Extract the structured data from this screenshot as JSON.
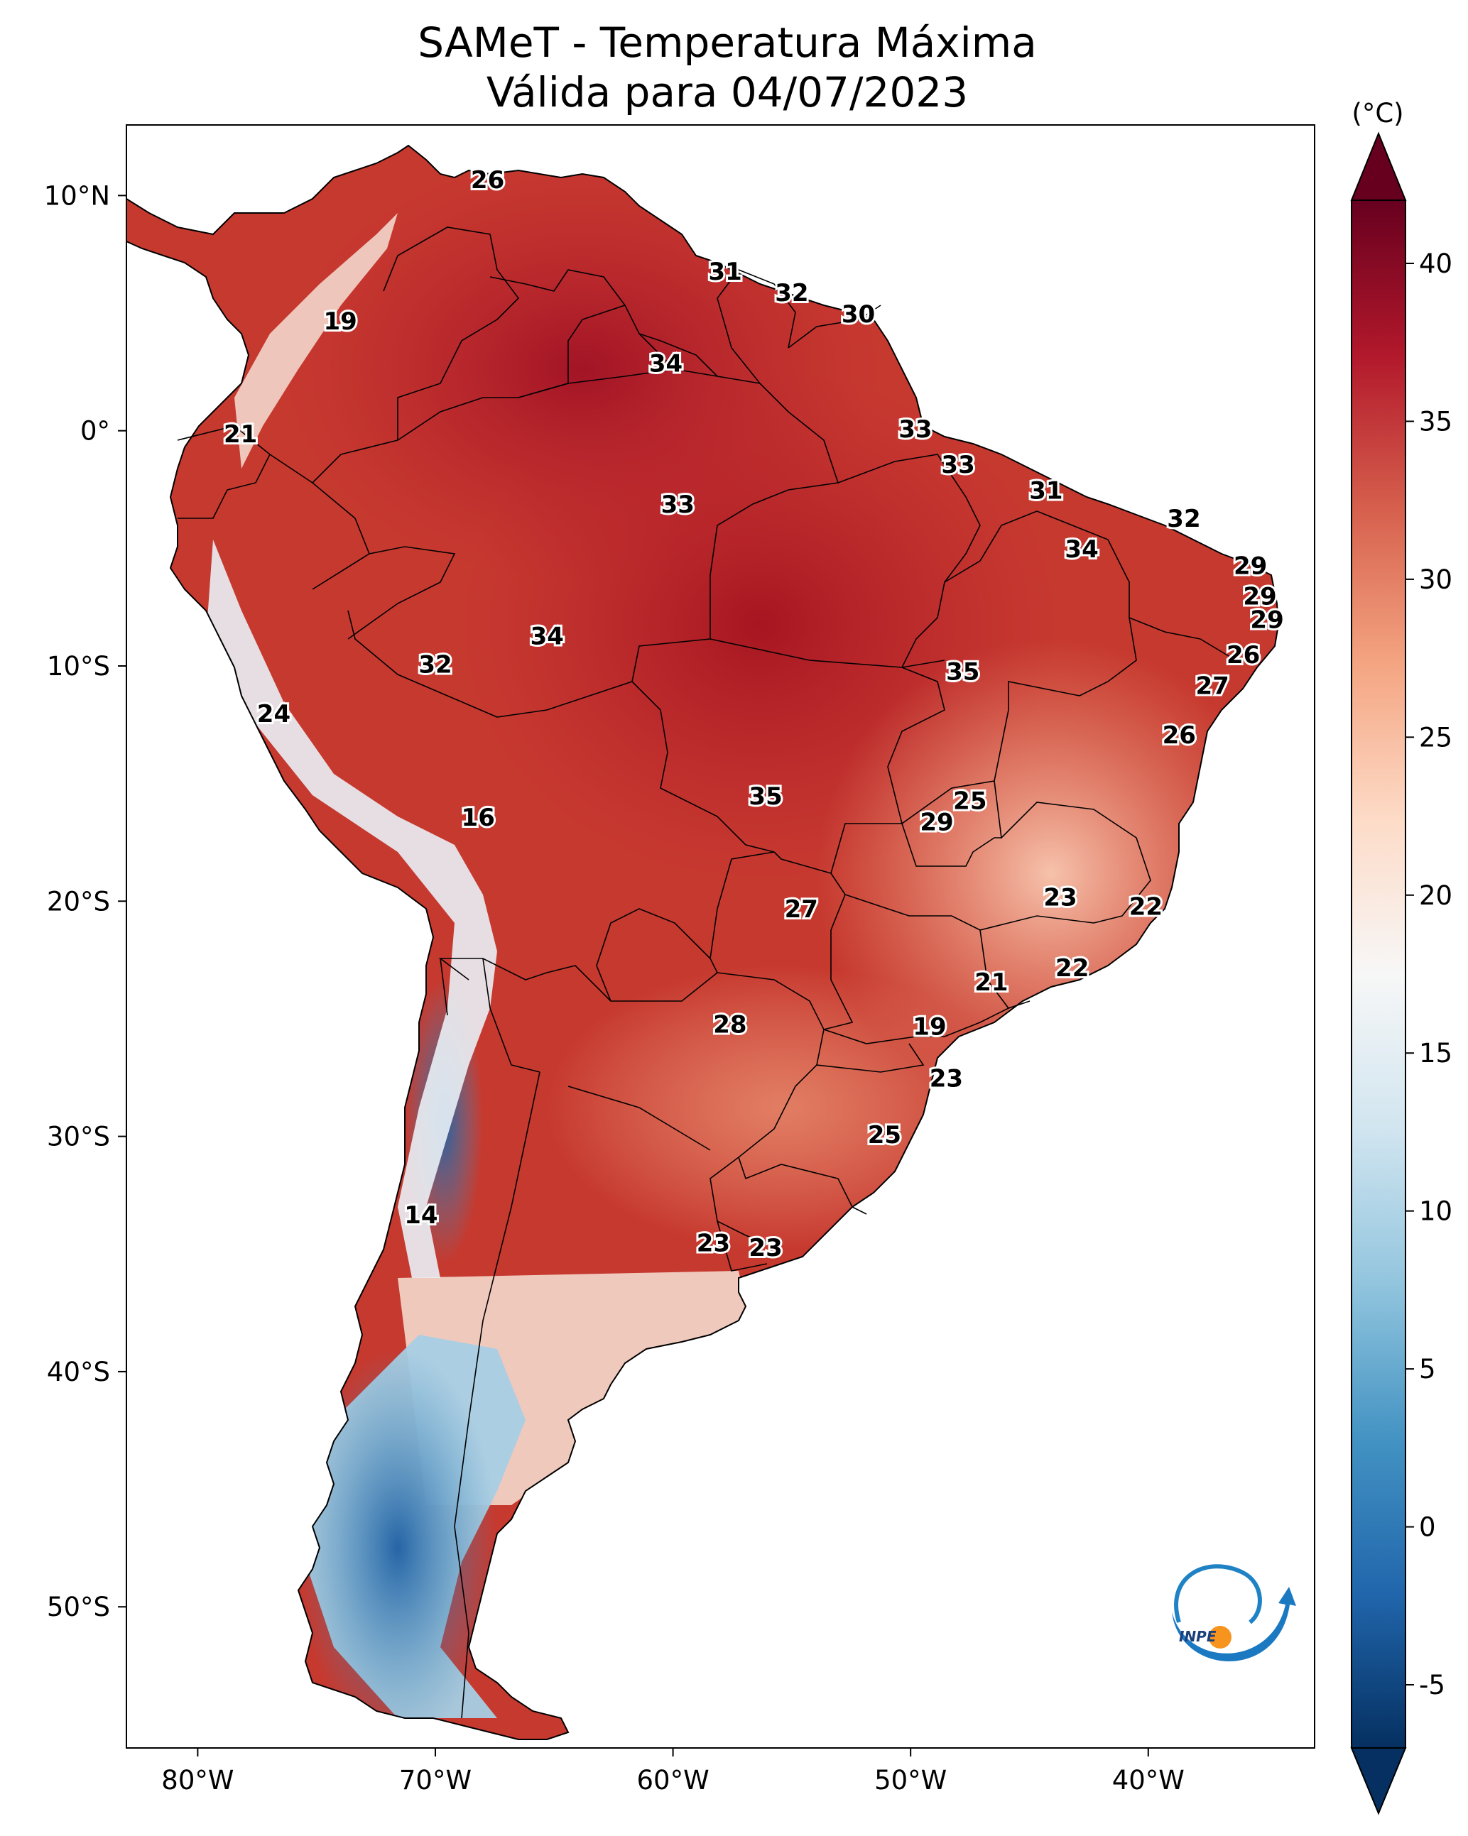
{
  "title": {
    "line1": "SAMeT - Temperatura Máxima",
    "line2": "Válida para 04/07/2023"
  },
  "map": {
    "lon_range": [
      -83,
      -33
    ],
    "lat_range": [
      -56,
      13
    ],
    "lon_ticks": [
      {
        "lon": -80,
        "label": "80°W"
      },
      {
        "lon": -70,
        "label": "70°W"
      },
      {
        "lon": -60,
        "label": "60°W"
      },
      {
        "lon": -50,
        "label": "50°W"
      },
      {
        "lon": -40,
        "label": "40°W"
      }
    ],
    "lat_ticks": [
      {
        "lat": 10,
        "label": "10°N"
      },
      {
        "lat": 0,
        "label": "0°"
      },
      {
        "lat": -10,
        "label": "10°S"
      },
      {
        "lat": -20,
        "label": "20°S"
      },
      {
        "lat": -30,
        "label": "30°S"
      },
      {
        "lat": -40,
        "label": "40°S"
      },
      {
        "lat": -50,
        "label": "50°S"
      }
    ],
    "station_values": [
      {
        "lon": -67.8,
        "lat": 10.6,
        "value": "26"
      },
      {
        "lon": -57.8,
        "lat": 6.7,
        "value": "31"
      },
      {
        "lon": -55.0,
        "lat": 5.8,
        "value": "32"
      },
      {
        "lon": -52.2,
        "lat": 4.9,
        "value": "30"
      },
      {
        "lon": -60.3,
        "lat": 2.8,
        "value": "34"
      },
      {
        "lon": -74.0,
        "lat": 4.6,
        "value": "19"
      },
      {
        "lon": -78.2,
        "lat": -0.2,
        "value": "21"
      },
      {
        "lon": -49.8,
        "lat": 0.0,
        "value": "33"
      },
      {
        "lon": -48.0,
        "lat": -1.5,
        "value": "33"
      },
      {
        "lon": -59.8,
        "lat": -3.2,
        "value": "33"
      },
      {
        "lon": -44.3,
        "lat": -2.6,
        "value": "31"
      },
      {
        "lon": -38.5,
        "lat": -3.8,
        "value": "32"
      },
      {
        "lon": -42.8,
        "lat": -5.1,
        "value": "34"
      },
      {
        "lon": -35.7,
        "lat": -5.8,
        "value": "29"
      },
      {
        "lon": -35.3,
        "lat": -7.1,
        "value": "29"
      },
      {
        "lon": -35.0,
        "lat": -8.1,
        "value": "29"
      },
      {
        "lon": -65.3,
        "lat": -8.8,
        "value": "34"
      },
      {
        "lon": -36.0,
        "lat": -9.6,
        "value": "26"
      },
      {
        "lon": -70.0,
        "lat": -10.0,
        "value": "32"
      },
      {
        "lon": -47.8,
        "lat": -10.3,
        "value": "35"
      },
      {
        "lon": -37.3,
        "lat": -10.9,
        "value": "27"
      },
      {
        "lon": -76.8,
        "lat": -12.1,
        "value": "24"
      },
      {
        "lon": -38.7,
        "lat": -13.0,
        "value": "26"
      },
      {
        "lon": -56.1,
        "lat": -15.6,
        "value": "35"
      },
      {
        "lon": -47.5,
        "lat": -15.8,
        "value": "25"
      },
      {
        "lon": -48.9,
        "lat": -16.7,
        "value": "29"
      },
      {
        "lon": -68.2,
        "lat": -16.5,
        "value": "16"
      },
      {
        "lon": -54.6,
        "lat": -20.4,
        "value": "27"
      },
      {
        "lon": -43.7,
        "lat": -19.9,
        "value": "23"
      },
      {
        "lon": -40.1,
        "lat": -20.3,
        "value": "22"
      },
      {
        "lon": -43.2,
        "lat": -22.9,
        "value": "22"
      },
      {
        "lon": -46.6,
        "lat": -23.5,
        "value": "21"
      },
      {
        "lon": -57.6,
        "lat": -25.3,
        "value": "28"
      },
      {
        "lon": -49.2,
        "lat": -25.4,
        "value": "19"
      },
      {
        "lon": -48.5,
        "lat": -27.6,
        "value": "23"
      },
      {
        "lon": -51.1,
        "lat": -30.0,
        "value": "25"
      },
      {
        "lon": -70.6,
        "lat": -33.4,
        "value": "14"
      },
      {
        "lon": -58.3,
        "lat": -34.6,
        "value": "23"
      },
      {
        "lon": -56.1,
        "lat": -34.8,
        "value": "23"
      }
    ]
  },
  "colorbar": {
    "unit_label": "(°C)",
    "min": -7,
    "max": 42,
    "ticks": [
      "-5",
      "0",
      "5",
      "10",
      "15",
      "20",
      "25",
      "30",
      "35",
      "40"
    ],
    "colors": [
      "#053061",
      "#2166ac",
      "#4393c3",
      "#92c5de",
      "#d1e5f0",
      "#f7f7f7",
      "#fddbc7",
      "#f4a582",
      "#d6604d",
      "#b2182b",
      "#67001f"
    ]
  },
  "logo": {
    "text": "INPE"
  }
}
